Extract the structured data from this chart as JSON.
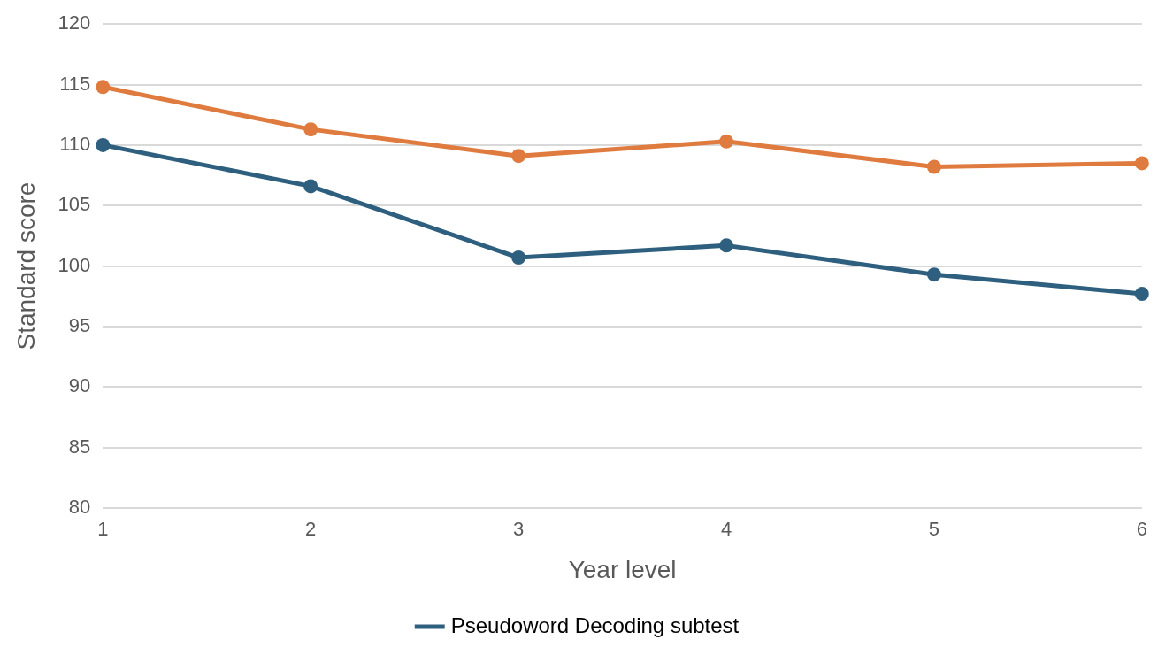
{
  "chart_data": {
    "type": "line",
    "xlabel": "Year level",
    "ylabel": "Standard score",
    "categories": [
      "1",
      "2",
      "3",
      "4",
      "5",
      "6"
    ],
    "series": [
      {
        "name": "Pseudoword Decoding subtest",
        "color": "#2e5f7f",
        "values": [
          110.0,
          106.6,
          100.7,
          101.7,
          99.3,
          97.7
        ]
      },
      {
        "color": "#e07b3f",
        "values": [
          114.8,
          111.3,
          109.1,
          110.3,
          108.2,
          108.5
        ]
      }
    ],
    "ylim": [
      80,
      120
    ],
    "yticks": [
      80,
      85,
      90,
      95,
      100,
      105,
      110,
      115,
      120
    ],
    "grid": "y",
    "legend": "bottom",
    "marker": "circle",
    "line_style": "solid"
  }
}
